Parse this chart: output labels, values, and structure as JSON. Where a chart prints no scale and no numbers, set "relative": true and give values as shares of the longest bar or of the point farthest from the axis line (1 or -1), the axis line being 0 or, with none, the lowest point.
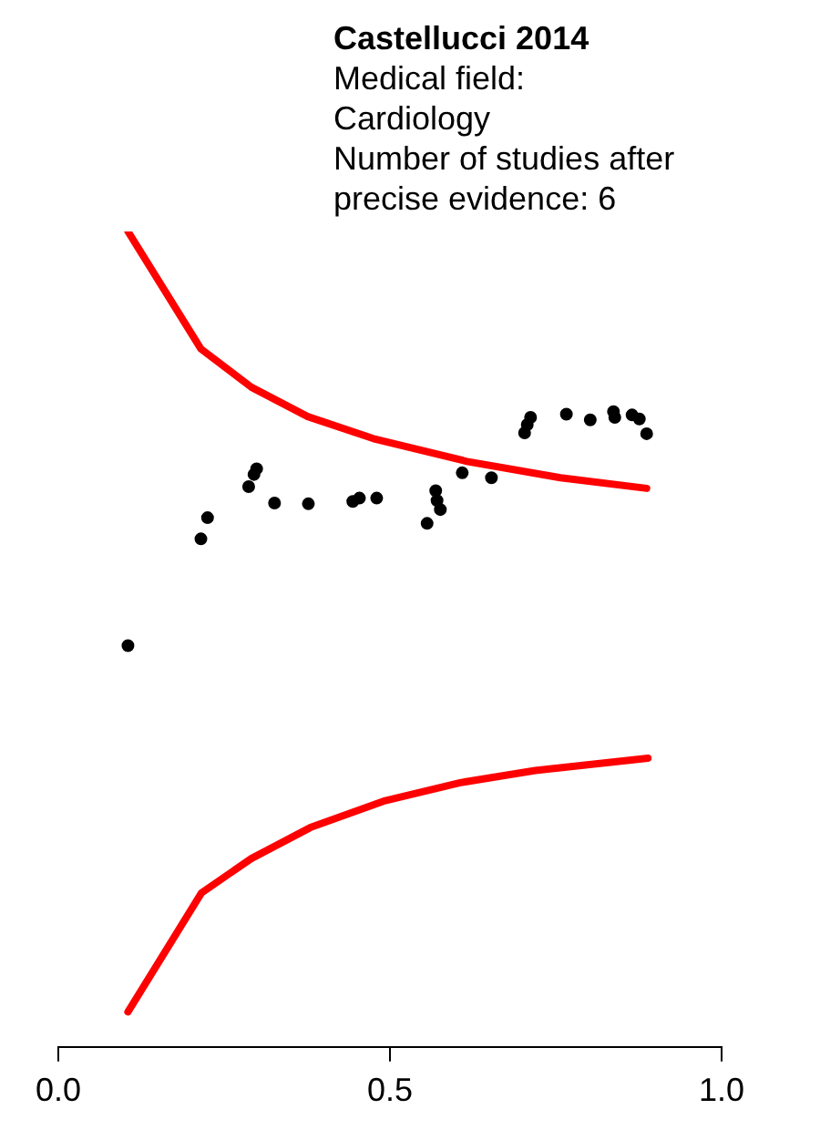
{
  "chart_data": {
    "type": "scatter",
    "title": "Castellucci 2014",
    "subtitle": "Medical field: Cardiology",
    "annotations": [
      "Number of studies after precise evidence: 6"
    ],
    "relative": true,
    "tick_labels": "x",
    "marker": "circle",
    "xlim": [
      0,
      1
    ],
    "xticks": [
      {
        "value": 0,
        "label": "0.0"
      },
      {
        "value": 0.5,
        "label": "0.5"
      },
      {
        "value": 1,
        "label": "1.0"
      }
    ],
    "series": [
      {
        "type": "line",
        "marker": "none",
        "line_style": "solid",
        "color": "#ff0000",
        "x": [
          0.105,
          0.215,
          0.291,
          0.376,
          0.475,
          0.616,
          0.757,
          0.887
        ],
        "values": [
          1,
          0.856,
          0.809,
          0.773,
          0.746,
          0.718,
          0.698,
          0.685
        ]
      },
      {
        "type": "line",
        "marker": "none",
        "line_style": "solid",
        "color": "#ff0000",
        "x": [
          0.105,
          0.216,
          0.291,
          0.38,
          0.493,
          0.606,
          0.719,
          0.889
        ],
        "values": [
          0.043,
          0.189,
          0.231,
          0.269,
          0.302,
          0.324,
          0.339,
          0.354
        ]
      },
      {
        "color": "#000000",
        "x": [
          0.105,
          0.215,
          0.225,
          0.287,
          0.295,
          0.299,
          0.326,
          0.377,
          0.444,
          0.454,
          0.48,
          0.556,
          0.569,
          0.571,
          0.576,
          0.609,
          0.653,
          0.703,
          0.707,
          0.712,
          0.766,
          0.802,
          0.837,
          0.839,
          0.865,
          0.876,
          0.887
        ],
        "values": [
          0.492,
          0.623,
          0.649,
          0.687,
          0.702,
          0.709,
          0.667,
          0.666,
          0.669,
          0.673,
          0.673,
          0.642,
          0.682,
          0.67,
          0.659,
          0.704,
          0.698,
          0.753,
          0.763,
          0.772,
          0.776,
          0.769,
          0.779,
          0.772,
          0.775,
          0.77,
          0.752
        ]
      }
    ]
  }
}
